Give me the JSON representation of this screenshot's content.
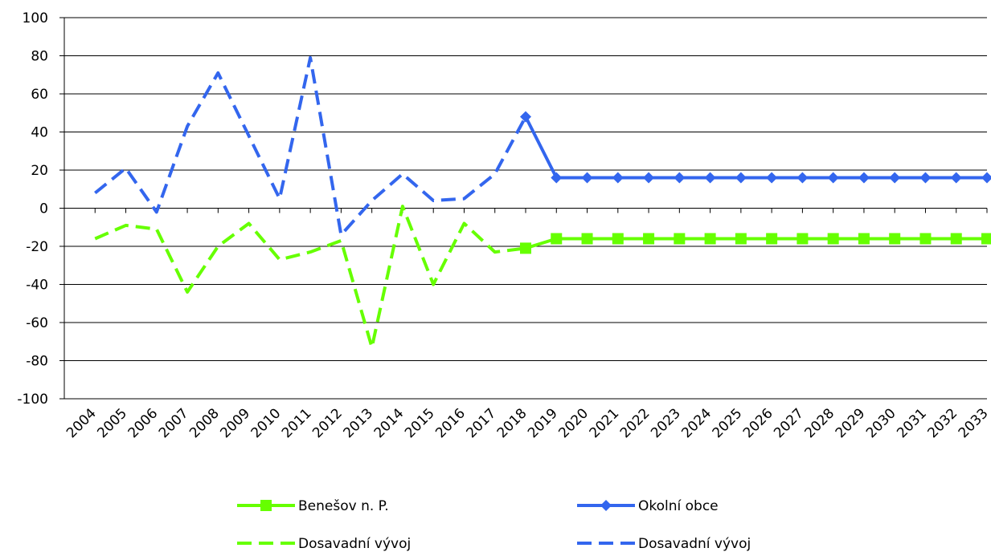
{
  "chart_data": {
    "type": "line",
    "title": "",
    "xlabel": "",
    "ylabel": "",
    "ylim": [
      -100,
      100
    ],
    "yticks": [
      100,
      80,
      60,
      40,
      20,
      0,
      -20,
      -40,
      -60,
      -80,
      -100
    ],
    "categories": [
      "2004",
      "2005",
      "2006",
      "2007",
      "2008",
      "2009",
      "2010",
      "2011",
      "2012",
      "2013",
      "2014",
      "2015",
      "2016",
      "2017",
      "2018",
      "2019",
      "2020",
      "2021",
      "2022",
      "2023",
      "2024",
      "2025",
      "2026",
      "2027",
      "2028",
      "2029",
      "2030",
      "2031",
      "2032",
      "2033"
    ],
    "grid": true,
    "legend_position": "bottom",
    "series": [
      {
        "name": "Benešov n. P.",
        "style": "solid",
        "marker": "square",
        "color": "#66ff00",
        "values": [
          null,
          null,
          null,
          null,
          null,
          null,
          null,
          null,
          null,
          null,
          null,
          null,
          null,
          null,
          -21,
          -16,
          -16,
          -16,
          -16,
          -16,
          -16,
          -16,
          -16,
          -16,
          -16,
          -16,
          -16,
          -16,
          -16,
          -16
        ]
      },
      {
        "name": "Okolní obce",
        "style": "solid",
        "marker": "diamond",
        "color": "#3366ee",
        "values": [
          null,
          null,
          null,
          null,
          null,
          null,
          null,
          null,
          null,
          null,
          null,
          null,
          null,
          null,
          48,
          16,
          16,
          16,
          16,
          16,
          16,
          16,
          16,
          16,
          16,
          16,
          16,
          16,
          16,
          16
        ]
      },
      {
        "name": "Dosavadní vývoj",
        "style": "dashed",
        "marker": "none",
        "color": "#66ff00",
        "values": [
          -16,
          -9,
          -11,
          -44,
          -20,
          -8,
          -27,
          -23,
          -17,
          -73,
          1,
          -40,
          -8,
          -23,
          -21,
          null,
          null,
          null,
          null,
          null,
          null,
          null,
          null,
          null,
          null,
          null,
          null,
          null,
          null,
          null
        ]
      },
      {
        "name": "Dosavadní vývoj",
        "style": "dashed",
        "marker": "none",
        "color": "#3366ee",
        "values": [
          8,
          21,
          -2,
          43,
          71,
          38,
          5,
          79,
          -14,
          4,
          18,
          4,
          5,
          18,
          48,
          null,
          null,
          null,
          null,
          null,
          null,
          null,
          null,
          null,
          null,
          null,
          null,
          null,
          null,
          null
        ]
      }
    ]
  }
}
